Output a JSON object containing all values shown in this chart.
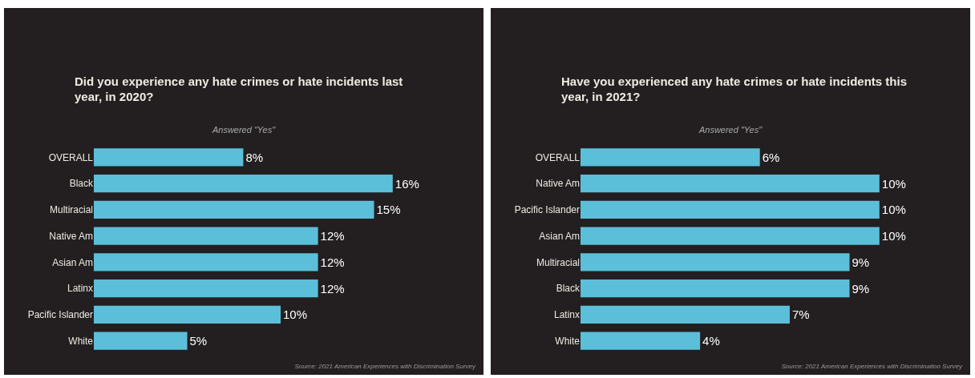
{
  "chart_data": [
    {
      "type": "bar",
      "orientation": "horizontal",
      "title": "Did you experience any hate crimes or hate incidents last year, in 2020?",
      "subtitle": "Answered \"Yes\"",
      "categories": [
        "OVERALL",
        "Black",
        "Multiracial",
        "Native Am",
        "Asian Am",
        "Latinx",
        "Pacific Islander",
        "White"
      ],
      "values": [
        8,
        16,
        15,
        12,
        12,
        12,
        10,
        5
      ],
      "value_labels": [
        "8%",
        "16%",
        "15%",
        "12%",
        "12%",
        "12%",
        "10%",
        "5%"
      ],
      "color": "#5bbfd9",
      "tick_labels": "y",
      "annotations": [
        "Source: 2021 American Experiences with Discrimination Survey"
      ]
    },
    {
      "type": "bar",
      "orientation": "horizontal",
      "title": "Have you experienced any hate crimes or hate incidents this year, in 2021?",
      "subtitle": "Answered \"Yes\"",
      "categories": [
        "OVERALL",
        "Native Am",
        "Pacific Islander",
        "Asian Am",
        "Multiracial",
        "Black",
        "Latinx",
        "White"
      ],
      "values": [
        6,
        10,
        10,
        10,
        9,
        9,
        7,
        4
      ],
      "value_labels": [
        "6%",
        "10%",
        "10%",
        "10%",
        "9%",
        "9%",
        "7%",
        "4%"
      ],
      "color": "#5bbfd9",
      "tick_labels": "y",
      "annotations": [
        "Source: 2021 American Experiences with Discrimination Survey"
      ]
    }
  ]
}
